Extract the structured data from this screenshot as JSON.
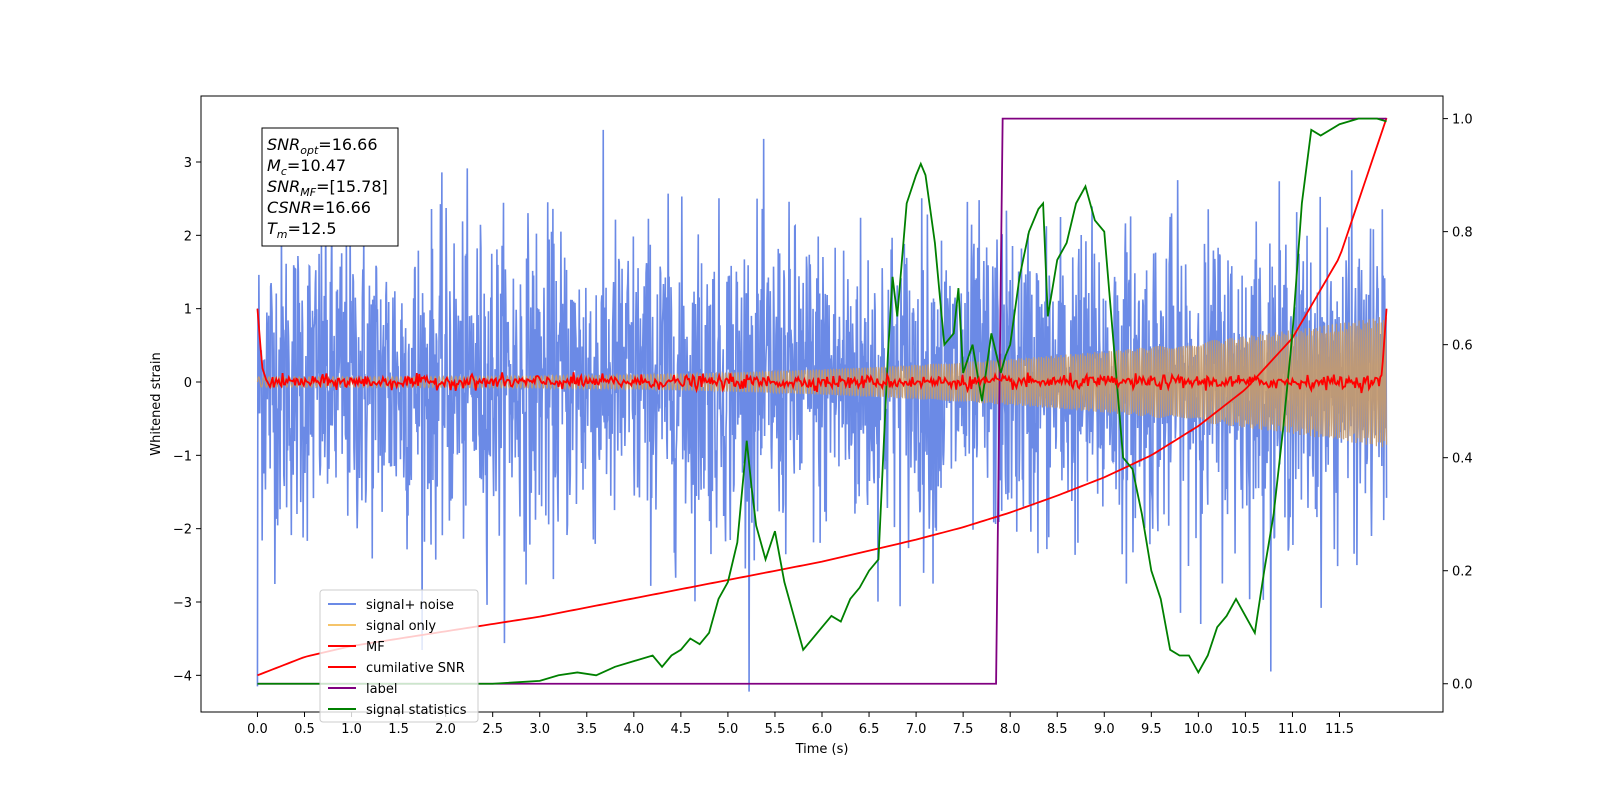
{
  "chart_data": {
    "type": "line",
    "title": "",
    "xlabel": "Time (s)",
    "ylabel": "Whitened strain",
    "xlim": [
      -0.6,
      12.6
    ],
    "ylim": [
      -4.5,
      3.9
    ],
    "ylim_right": [
      -0.05,
      1.04
    ],
    "x_ticks": [
      0.0,
      0.5,
      1.0,
      1.5,
      2.0,
      2.5,
      3.0,
      3.5,
      4.0,
      4.5,
      5.0,
      5.5,
      6.0,
      6.5,
      7.0,
      7.5,
      8.0,
      8.5,
      9.0,
      9.5,
      10.0,
      10.5,
      11.0,
      11.5
    ],
    "x_tick_labels": [
      "0.0",
      "0.5",
      "1.0",
      "1.5",
      "2.0",
      "2.5",
      "3.0",
      "3.5",
      "4.0",
      "4.5",
      "5.0",
      "5.5",
      "6.0",
      "6.5",
      "7.0",
      "7.5",
      "8.0",
      "8.5",
      "9.0",
      "9.5",
      "10.0",
      "10.5",
      "11.0",
      "11.5"
    ],
    "y_ticks": [
      -4,
      -3,
      -2,
      -1,
      0,
      1,
      2,
      3
    ],
    "y_tick_labels": [
      "−4",
      "−3",
      "−2",
      "−1",
      "0",
      "1",
      "2",
      "3"
    ],
    "y_ticks_right": [
      0.0,
      0.2,
      0.4,
      0.6,
      0.8,
      1.0
    ],
    "y_tick_labels_right": [
      "0.0",
      "0.2",
      "0.4",
      "0.6",
      "0.8",
      "1.0"
    ],
    "grid": false,
    "legend_position": "lower-left",
    "info_box": {
      "lines": [
        {
          "main": "SNR",
          "sub": "opt",
          "value": "=16.66"
        },
        {
          "main": "M",
          "sub": "c",
          "value": "=10.47"
        },
        {
          "main": "SNR",
          "sub": "MF",
          "value": "=[15.78]"
        },
        {
          "main": "CSNR",
          "sub": "",
          "value": "=16.66"
        },
        {
          "main": "T",
          "sub": "m",
          "value": "=12.5"
        }
      ]
    },
    "series": [
      {
        "name": "signal+ noise",
        "color": "#6b8ae6",
        "axis": "left",
        "kind": "noise",
        "noise_std": 1.05,
        "x_range": [
          0,
          12.0
        ]
      },
      {
        "name": "signal only",
        "color": "#f5c46a",
        "axis": "left",
        "kind": "chirp",
        "amplitude_start": 0.07,
        "amplitude_end": 0.9,
        "x_range": [
          0,
          12.0
        ]
      },
      {
        "name": "MF",
        "color": "#ff0000",
        "axis": "left",
        "kind": "mf",
        "x": [
          0,
          0.05,
          0.1,
          0.2,
          0.5,
          1.0,
          1.5,
          2.0,
          3.0,
          4.0,
          5.0,
          6.0,
          7.0,
          8.0,
          9.0,
          10.0,
          11.0,
          11.9,
          11.95,
          12.0
        ],
        "y": [
          1.0,
          0.2,
          0.0,
          0.0,
          0.0,
          0.0,
          0.05,
          0.0,
          0.0,
          0.0,
          0.0,
          0.0,
          0.0,
          0.0,
          0.0,
          0.0,
          0.0,
          0.0,
          0.1,
          1.0
        ]
      },
      {
        "name": "cumilative SNR",
        "color": "#ff0000",
        "axis": "left",
        "x": [
          0,
          0.5,
          1.0,
          2.0,
          3.0,
          4.0,
          5.0,
          6.0,
          7.0,
          7.5,
          8.0,
          8.5,
          9.0,
          9.5,
          10.0,
          10.5,
          11.0,
          11.5,
          12.0
        ],
        "y": [
          -4.0,
          -3.75,
          -3.6,
          -3.4,
          -3.2,
          -2.95,
          -2.7,
          -2.45,
          -2.15,
          -1.98,
          -1.78,
          -1.55,
          -1.3,
          -1.0,
          -0.6,
          -0.1,
          0.6,
          1.7,
          3.6
        ]
      },
      {
        "name": "label",
        "color": "#800080",
        "axis": "right",
        "x": [
          0,
          7.85,
          7.92,
          12.0
        ],
        "y": [
          0,
          0,
          1,
          1
        ]
      },
      {
        "name": "signal statistics",
        "color": "#008000",
        "axis": "right",
        "x": [
          0,
          1.0,
          2.0,
          2.5,
          3.0,
          3.2,
          3.4,
          3.6,
          3.8,
          4.0,
          4.2,
          4.3,
          4.4,
          4.5,
          4.6,
          4.7,
          4.8,
          4.9,
          5.0,
          5.1,
          5.2,
          5.25,
          5.3,
          5.4,
          5.5,
          5.6,
          5.7,
          5.8,
          5.9,
          6.0,
          6.1,
          6.2,
          6.3,
          6.4,
          6.5,
          6.6,
          6.7,
          6.75,
          6.8,
          6.9,
          7.0,
          7.05,
          7.1,
          7.2,
          7.3,
          7.4,
          7.45,
          7.5,
          7.6,
          7.7,
          7.8,
          7.9,
          7.95,
          8.0,
          8.1,
          8.2,
          8.3,
          8.35,
          8.4,
          8.5,
          8.6,
          8.7,
          8.8,
          8.9,
          9.0,
          9.1,
          9.2,
          9.3,
          9.4,
          9.5,
          9.6,
          9.7,
          9.8,
          9.9,
          10.0,
          10.1,
          10.2,
          10.3,
          10.4,
          10.5,
          10.6,
          10.7,
          10.8,
          10.9,
          11.0,
          11.1,
          11.2,
          11.3,
          11.5,
          11.7,
          11.9,
          12.0
        ],
        "y": [
          0.0,
          0.0,
          0.0,
          0.0,
          0.005,
          0.015,
          0.02,
          0.015,
          0.03,
          0.04,
          0.05,
          0.03,
          0.05,
          0.06,
          0.08,
          0.07,
          0.09,
          0.15,
          0.18,
          0.25,
          0.43,
          0.35,
          0.28,
          0.22,
          0.27,
          0.18,
          0.12,
          0.06,
          0.08,
          0.1,
          0.12,
          0.11,
          0.15,
          0.17,
          0.2,
          0.22,
          0.58,
          0.72,
          0.65,
          0.85,
          0.9,
          0.92,
          0.9,
          0.78,
          0.6,
          0.62,
          0.7,
          0.55,
          0.6,
          0.5,
          0.62,
          0.55,
          0.58,
          0.6,
          0.72,
          0.8,
          0.84,
          0.85,
          0.65,
          0.75,
          0.78,
          0.85,
          0.88,
          0.82,
          0.8,
          0.6,
          0.4,
          0.38,
          0.3,
          0.2,
          0.15,
          0.06,
          0.05,
          0.05,
          0.02,
          0.05,
          0.1,
          0.12,
          0.15,
          0.12,
          0.09,
          0.2,
          0.3,
          0.45,
          0.62,
          0.85,
          0.98,
          0.97,
          0.99,
          1.0,
          1.0,
          0.995
        ]
      }
    ]
  }
}
